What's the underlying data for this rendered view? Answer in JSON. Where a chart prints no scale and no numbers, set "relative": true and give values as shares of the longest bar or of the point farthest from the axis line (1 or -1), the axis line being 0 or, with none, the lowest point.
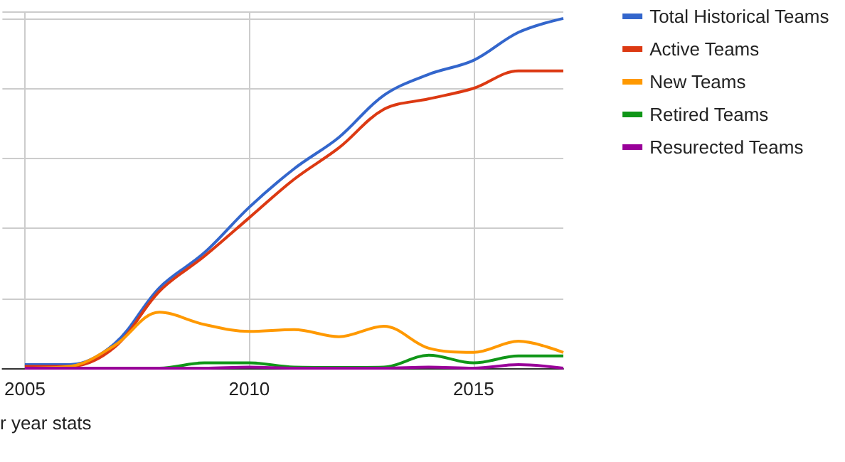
{
  "chart_data": {
    "type": "line",
    "relative": true,
    "x": [
      2005,
      2006,
      2007,
      2008,
      2009,
      2010,
      2011,
      2012,
      2013,
      2014,
      2015,
      2016,
      2017
    ],
    "xlim": [
      2004.5,
      2017
    ],
    "xticks": [
      2005,
      2010,
      2015
    ],
    "grid": true,
    "legend": "right",
    "marker": "none",
    "line_style": "solid",
    "annotations": [
      "r year stats"
    ],
    "series": [
      {
        "name": "Total Historical Teams",
        "color": "#3366cc",
        "values": [
          0.01,
          0.01,
          0.07,
          0.23,
          0.33,
          0.46,
          0.57,
          0.66,
          0.78,
          0.84,
          0.88,
          0.96,
          1
        ]
      },
      {
        "name": "Active Teams",
        "color": "#dc3912",
        "values": [
          0.005,
          0.005,
          0.06,
          0.22,
          0.32,
          0.43,
          0.54,
          0.63,
          0.74,
          0.77,
          0.8,
          0.85,
          0.85
        ]
      },
      {
        "name": "New Teams",
        "color": "#ff9900",
        "values": [
          0,
          0.005,
          0.065,
          0.16,
          0.125,
          0.105,
          0.11,
          0.09,
          0.12,
          0.057,
          0.045,
          0.077,
          0.045
        ]
      },
      {
        "name": "Retired Teams",
        "color": "#109618",
        "values": [
          null,
          null,
          0,
          0,
          0.015,
          0.015,
          0.003,
          0.002,
          0.003,
          0.037,
          0.015,
          0.035,
          0.035
        ]
      },
      {
        "name": "Resurected Teams",
        "color": "#990099",
        "values": [
          0,
          0,
          0,
          0,
          0,
          0.003,
          0,
          0,
          0,
          0.003,
          0,
          0.01,
          0
        ]
      }
    ]
  }
}
